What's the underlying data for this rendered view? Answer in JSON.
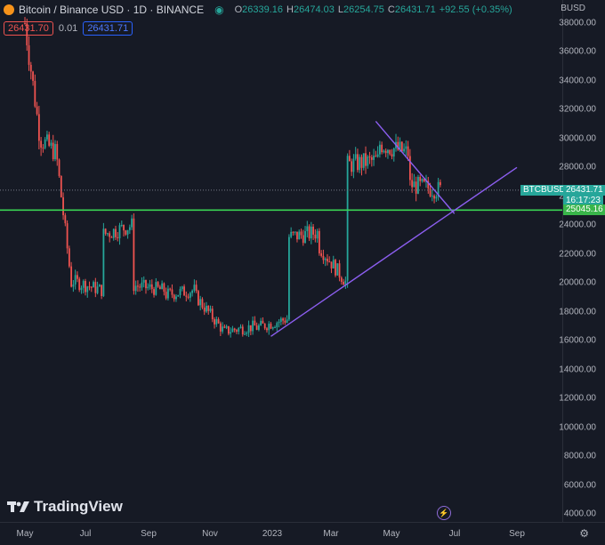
{
  "legend": {
    "symbol": "Bitcoin / Binance USD · 1D · BINANCE",
    "open_label": "O",
    "open": "26339.16",
    "high_label": "H",
    "high": "26474.03",
    "low_label": "L",
    "low": "26254.75",
    "close_label": "C",
    "close": "26431.71",
    "change": "+92.55 (+0.35%)",
    "sell_price": "26431.70",
    "spread": "0.01",
    "buy_price": "26431.71"
  },
  "price_scale": {
    "currency": "BUSD",
    "ticks": [
      "38000.00",
      "36000.00",
      "34000.00",
      "32000.00",
      "30000.00",
      "28000.00",
      "26000.00",
      "24000.00",
      "22000.00",
      "20000.00",
      "18000.00",
      "16000.00",
      "14000.00",
      "12000.00",
      "10000.00",
      "8000.00",
      "6000.00",
      "4000.00"
    ],
    "symbol_tag": "BTCBUSD",
    "last_price": "26431.71",
    "countdown": "16:17:23",
    "line_price": "25045.16"
  },
  "time_scale": {
    "ticks": [
      "May",
      "Jul",
      "Sep",
      "Nov",
      "2023",
      "Mar",
      "May",
      "Jul",
      "Sep"
    ]
  },
  "branding": {
    "logo_text": "TradingView"
  },
  "colors": {
    "background": "#161a25",
    "up": "#26a69a",
    "down": "#ef5350",
    "support_line": "#39d353",
    "trendline": "#8c5ef0"
  },
  "chart_data": {
    "type": "candlestick",
    "title": "Bitcoin / Binance USD · 1D · BINANCE",
    "ylim": [
      4000,
      38000
    ],
    "x_ticks": [
      "May",
      "Jul",
      "Sep",
      "Nov",
      "2023",
      "Mar",
      "May",
      "Jul",
      "Sep"
    ],
    "series": [
      {
        "name": "BTCBUSD",
        "x": [
          "2022-05",
          "2022-05",
          "2022-06",
          "2022-06",
          "2022-06",
          "2022-07",
          "2022-07",
          "2022-08",
          "2022-08",
          "2022-09",
          "2022-09",
          "2022-10",
          "2022-10",
          "2022-11",
          "2022-11",
          "2022-12",
          "2022-12",
          "2023-01",
          "2023-01",
          "2023-02",
          "2023-02",
          "2023-03",
          "2023-03",
          "2023-04",
          "2023-04",
          "2023-05",
          "2023-05",
          "2023-06"
        ],
        "close": [
          38000,
          30000,
          29000,
          20000,
          20500,
          19500,
          23000,
          24000,
          20000,
          19500,
          19000,
          19500,
          20500,
          16500,
          16500,
          17000,
          16600,
          17500,
          23000,
          23500,
          24000,
          20000,
          28000,
          28500,
          30000,
          29000,
          27000,
          26431
        ]
      }
    ],
    "annotations": {
      "horizontal_support": 25045.16,
      "descending_trendline": [
        [
          "2023-04-14",
          31200
        ],
        [
          "2023-07-01",
          24800
        ]
      ],
      "ascending_trendline": [
        [
          "2022-12-31",
          16300
        ],
        [
          "2023-09-01",
          28000
        ]
      ]
    },
    "grid": false
  }
}
